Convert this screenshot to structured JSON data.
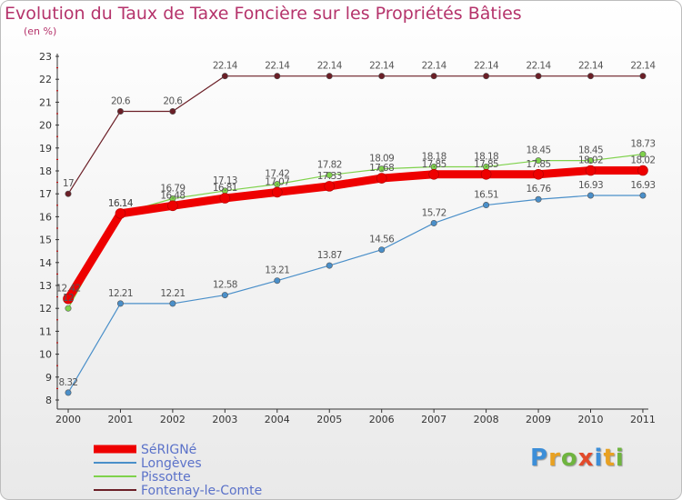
{
  "title": "Evolution du Taux de Taxe Foncière sur les Propriétés Bâties",
  "subtitle": "(en %)",
  "brand": {
    "letters": [
      "P",
      "r",
      "o",
      "x",
      "i",
      "t",
      "i"
    ],
    "colors": [
      "#3c8ed8",
      "#e8a122",
      "#6fb43f",
      "#e24a2b",
      "#3c8ed8",
      "#e8a122",
      "#6fb43f"
    ]
  },
  "chart_data": {
    "type": "line",
    "title": "Evolution du Taux de Taxe Foncière sur les Propriétés Bâties",
    "ylabel": "(en %)",
    "x": [
      "2000",
      "2001",
      "2002",
      "2003",
      "2004",
      "2005",
      "2006",
      "2007",
      "2008",
      "2009",
      "2010",
      "2011"
    ],
    "ylim": [
      8,
      23
    ],
    "yticks": [
      "8",
      "9",
      "10",
      "11",
      "12",
      "13",
      "14",
      "15",
      "16",
      "17",
      "18",
      "19",
      "20",
      "21",
      "22",
      "23"
    ],
    "grid": false,
    "legend": "bottom-left",
    "series": [
      {
        "name": "Fontenay-le-Comte",
        "color": "#6b1f27",
        "values": [
          17,
          20.6,
          20.6,
          22.14,
          22.14,
          22.14,
          22.14,
          22.14,
          22.14,
          22.14,
          22.14,
          22.14
        ],
        "labels": [
          "17",
          "20.6",
          "20.6",
          "22.14",
          "22.14",
          "22.14",
          "22.14",
          "22.14",
          "22.14",
          "22.14",
          "22.14",
          "22.14"
        ]
      },
      {
        "name": "Pissotte",
        "color": "#7fd24c",
        "values": [
          12,
          16.14,
          16.79,
          17.13,
          17.42,
          17.82,
          18.09,
          18.18,
          18.18,
          18.45,
          18.45,
          18.73
        ],
        "labels": [
          "12",
          "16.14",
          "16.79",
          "17.13",
          "17.42",
          "17.82",
          "18.09",
          "18.18",
          "18.18",
          "18.45",
          "18.45",
          "18.73"
        ]
      },
      {
        "name": "Longèves",
        "color": "#4a8fc9",
        "values": [
          8.32,
          12.21,
          12.21,
          12.58,
          13.21,
          13.87,
          14.56,
          15.72,
          16.51,
          16.76,
          16.93,
          16.93
        ],
        "labels": [
          "8.32",
          "12.21",
          "12.21",
          "12.58",
          "13.21",
          "13.87",
          "14.56",
          "15.72",
          "16.51",
          "16.76",
          "16.93",
          "16.93"
        ]
      },
      {
        "name": "SéRIGNé",
        "color": "#ee0000",
        "values": [
          12.42,
          16.14,
          16.48,
          16.81,
          17.07,
          17.33,
          17.68,
          17.85,
          17.85,
          17.85,
          18.02,
          18.02
        ],
        "labels": [
          "12.42",
          "16.14",
          "16.48",
          "16.81",
          "17.07",
          "17.33",
          "17.68",
          "17.85",
          "17.85",
          "17.85",
          "18.02",
          "18.02"
        ]
      }
    ],
    "legend_entries": [
      {
        "name": "SéRIGNé",
        "color": "#ee0000"
      },
      {
        "name": "Longèves",
        "color": "#4a8fc9"
      },
      {
        "name": "Pissotte",
        "color": "#7fd24c"
      },
      {
        "name": "Fontenay-le-Comte",
        "color": "#6b1f27"
      }
    ]
  }
}
